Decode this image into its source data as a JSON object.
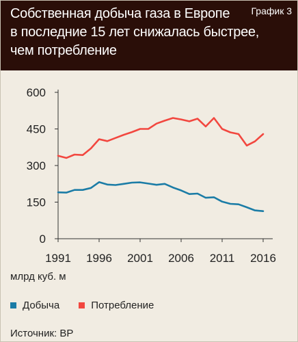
{
  "header": {
    "title_lines": [
      "Собственная добыча газа в Европе",
      "в последние 15 лет снижалась быстрее,",
      "чем потребление"
    ],
    "badge": "График 3"
  },
  "unit_label": "млрд куб. м",
  "source": "Источник: BP",
  "colors": {
    "production": "#1b7ca6",
    "consumption": "#f2473f",
    "header_bg": "#2a0e08",
    "panel_bg": "#f1ece2"
  },
  "chart_data": {
    "type": "line",
    "title": "Собственная добыча газа в Европе в последние 15 лет снижалась быстрее, чем потребление",
    "xlabel": "",
    "ylabel": "млрд куб. м",
    "x": [
      1991,
      1992,
      1993,
      1994,
      1995,
      1996,
      1997,
      1998,
      1999,
      2000,
      2001,
      2002,
      2003,
      2004,
      2005,
      2006,
      2007,
      2008,
      2009,
      2010,
      2011,
      2012,
      2013,
      2014,
      2015,
      2016
    ],
    "xticks": [
      "1991",
      "1996",
      "2001",
      "2006",
      "2011",
      "2016"
    ],
    "yticks": [
      "0",
      "150",
      "300",
      "450",
      "600"
    ],
    "xlim": [
      1991,
      2016
    ],
    "ylim": [
      0,
      600
    ],
    "grid": false,
    "legend_position": "bottom",
    "series": [
      {
        "name": "Добыча",
        "color": "#1b7ca6",
        "values": [
          190,
          189,
          200,
          200,
          208,
          232,
          222,
          220,
          225,
          230,
          231,
          226,
          221,
          225,
          210,
          198,
          183,
          185,
          168,
          170,
          152,
          143,
          141,
          129,
          116,
          113
        ]
      },
      {
        "name": "Потребление",
        "color": "#f2473f",
        "values": [
          340,
          331,
          345,
          343,
          370,
          408,
          400,
          413,
          426,
          437,
          450,
          450,
          472,
          484,
          495,
          489,
          481,
          492,
          460,
          495,
          450,
          436,
          429,
          382,
          399,
          429
        ]
      }
    ]
  }
}
